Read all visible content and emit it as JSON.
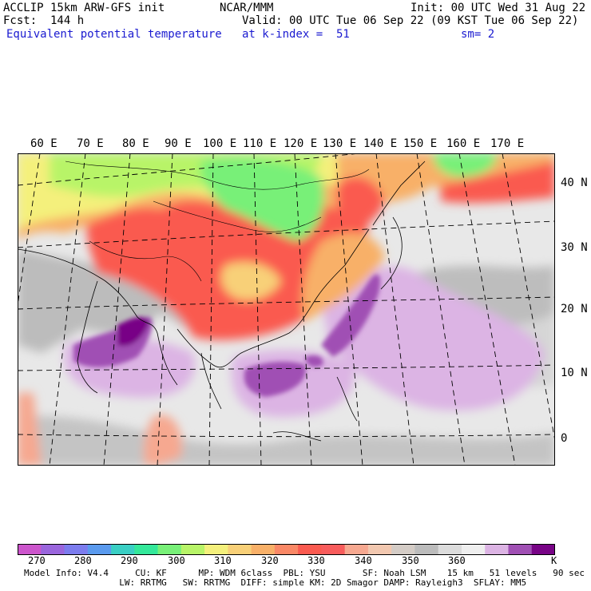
{
  "header": {
    "model_line": "ACCLIP 15km ARW-GFS init",
    "center_label": "NCAR/MMM",
    "init_label": "Init: 00 UTC Wed 31 Aug 22",
    "fcst_label": "Fcst:  144 h",
    "valid_label": "Valid: 00 UTC Tue 06 Sep 22 (09 KST Tue 06 Sep 22)",
    "field_name": "Equivalent potential temperature",
    "level_label": "at k-index =  51",
    "smooth_label": "sm= 2"
  },
  "map": {
    "longitude_labels": [
      "60 E",
      "70 E",
      "80 E",
      "90 E",
      "100 E",
      "110 E",
      "120 E",
      "130 E",
      "140 E",
      "150 E",
      "160 E",
      "170 E"
    ],
    "latitude_labels": [
      "40 N",
      "30 N",
      "20 N",
      "10 N",
      "0"
    ]
  },
  "colorbar": {
    "unit": "K",
    "tick_labels": [
      "270",
      "280",
      "290",
      "300",
      "310",
      "320",
      "330",
      "340",
      "350",
      "360"
    ],
    "colors": [
      "#cc55cc",
      "#9a66dd",
      "#7c7cee",
      "#5a9aee",
      "#3acfc4",
      "#34e89a",
      "#78f078",
      "#b8f468",
      "#f4f07c",
      "#f8d078",
      "#f8b068",
      "#fa8866",
      "#fa5a50",
      "#f85c5c",
      "#f6a890",
      "#f2c8b0",
      "#d4ccc6",
      "#bcbcbc",
      "#dcdcdc",
      "#efefef",
      "#dcb4e4",
      "#a050b4",
      "#780486"
    ]
  },
  "footer": {
    "line1": "Model Info: V4.4     CU: KF      MP: WDM 6class  PBL: YSU       SF: Noah LSM    15 km   51 levels   90 sec",
    "line2": "                  LW: RRTMG   SW: RRTMG  DIFF: simple KM: 2D Smagor DAMP: Rayleigh3  SFLAY: MM5"
  }
}
